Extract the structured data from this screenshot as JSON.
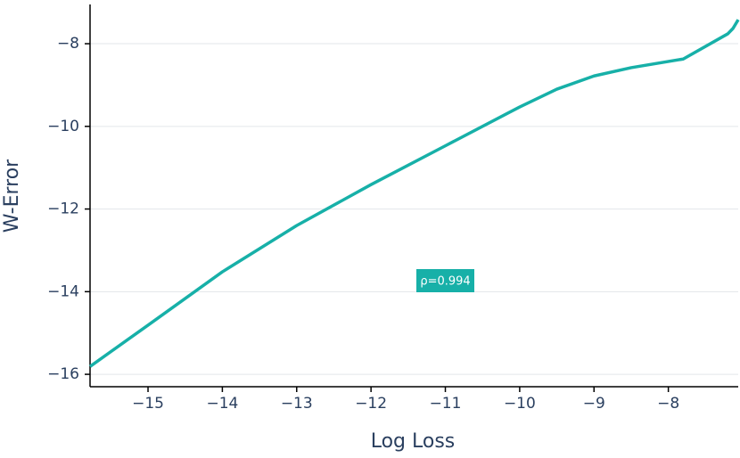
{
  "chart_data": {
    "type": "line",
    "x_label": "Log Loss",
    "y_label": "W-Error",
    "x": [
      -15.78,
      -15,
      -14,
      -13,
      -12,
      -11,
      -10,
      -9.5,
      -9,
      -8.5,
      -7.8,
      -7.2,
      -7.13,
      -7.06
    ],
    "series": [
      {
        "color": "#17b0a8",
        "values": [
          -15.81,
          -14.81,
          -13.52,
          -12.4,
          -11.41,
          -10.47,
          -9.53,
          -9.1,
          -8.78,
          -8.58,
          -8.37,
          -7.76,
          -7.63,
          -7.42
        ]
      }
    ],
    "annotations": [
      "ρ=0.994"
    ],
    "annotation_color": "#17b0a8",
    "xlim": [
      -15.78,
      -7.06
    ],
    "ylim": [
      -16.3,
      -7.05
    ],
    "xticks": [
      {
        "value": -15,
        "label": "−15"
      },
      {
        "value": -14,
        "label": "−14"
      },
      {
        "value": -13,
        "label": "−13"
      },
      {
        "value": -12,
        "label": "−12"
      },
      {
        "value": -11,
        "label": "−11"
      },
      {
        "value": -10,
        "label": "−10"
      },
      {
        "value": -9,
        "label": "−9"
      },
      {
        "value": -8,
        "label": "−8"
      }
    ],
    "yticks": [
      {
        "value": -16,
        "label": "−16"
      },
      {
        "value": -14,
        "label": "−14"
      },
      {
        "value": -12,
        "label": "−12"
      },
      {
        "value": -10,
        "label": "−10"
      },
      {
        "value": -8,
        "label": "−8"
      }
    ],
    "grid": true
  }
}
